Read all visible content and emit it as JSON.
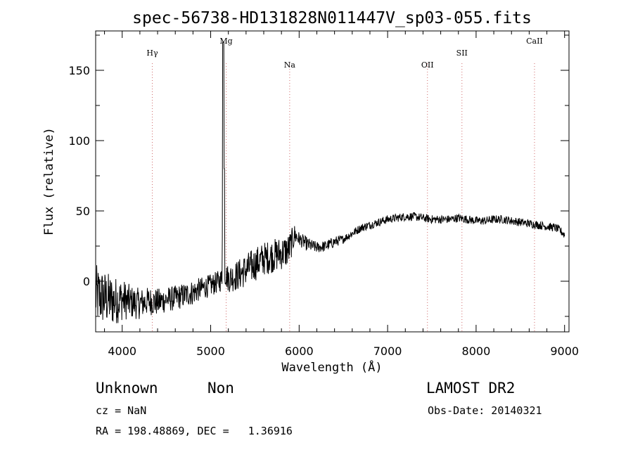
{
  "chart_data": {
    "type": "line",
    "title": "spec-56738-HD131828N011447V_sp03-055.fits",
    "xlabel": "Wavelength (Å)",
    "ylabel": "Flux (relative)",
    "xlim": [
      3700,
      9050
    ],
    "ylim": [
      -36,
      178
    ],
    "x_ticks": [
      4000,
      5000,
      6000,
      7000,
      8000,
      9000
    ],
    "y_ticks": [
      0,
      50,
      100,
      150
    ],
    "x_tick_labels": [
      "4000",
      "5000",
      "6000",
      "7000",
      "8000",
      "9000"
    ],
    "y_tick_labels": [
      "0",
      "50",
      "100",
      "150"
    ],
    "grid": false,
    "series": [
      {
        "color": "#000000",
        "x": [
          3700,
          3800,
          3900,
          4000,
          4100,
          4200,
          4300,
          4400,
          4500,
          4600,
          4700,
          4800,
          4900,
          5000,
          5100,
          5130,
          5140,
          5150,
          5160,
          5200,
          5300,
          5400,
          5500,
          5600,
          5700,
          5800,
          5880,
          5900,
          5950,
          6000,
          6100,
          6200,
          6300,
          6400,
          6500,
          6600,
          6700,
          6800,
          6900,
          7000,
          7100,
          7200,
          7300,
          7400,
          7500,
          7600,
          7700,
          7800,
          7900,
          8000,
          8100,
          8200,
          8300,
          8400,
          8500,
          8600,
          8700,
          8800,
          8900,
          8950,
          9000
        ],
        "y": [
          -10,
          -12,
          -14,
          -13,
          -15,
          -16,
          -14,
          -15,
          -13,
          -12,
          -10,
          -8,
          -5,
          -3,
          0,
          2,
          170,
          80,
          5,
          2,
          4,
          8,
          12,
          16,
          18,
          20,
          22,
          25,
          33,
          30,
          26,
          24,
          25,
          28,
          30,
          34,
          38,
          40,
          42,
          44,
          45,
          46,
          46,
          45,
          44,
          44,
          44,
          45,
          44,
          43,
          43,
          44,
          44,
          43,
          42,
          41,
          40,
          39,
          38,
          36,
          33
        ],
        "noise_amplitude": [
          22,
          20,
          18,
          15,
          12,
          11,
          10,
          10,
          9,
          9,
          9,
          9,
          8,
          8,
          8,
          8,
          0,
          0,
          8,
          10,
          11,
          12,
          12,
          12,
          12,
          12,
          12,
          11,
          8,
          5,
          5,
          4,
          4,
          4,
          3,
          3,
          3,
          3,
          3,
          3,
          3,
          3,
          3,
          3,
          3,
          3,
          3,
          3,
          3,
          3,
          3,
          3,
          3,
          3,
          3,
          3,
          3,
          3,
          3,
          3,
          3
        ]
      }
    ],
    "line_markers": [
      {
        "label": "Hγ",
        "x": 4340
      },
      {
        "label": "Mg",
        "x": 5175
      },
      {
        "label": "Na",
        "x": 5893
      },
      {
        "label": "OII",
        "x": 7450
      },
      {
        "label": "SII",
        "x": 7840
      },
      {
        "label": "CaII",
        "x": 8660
      }
    ],
    "marker_color": "#d06b6b"
  },
  "info": {
    "class_label": "Unknown",
    "subclass_label": "Non",
    "survey": "LAMOST DR2",
    "cz_text": "cz = NaN",
    "obs_date_text": "Obs-Date: 20140321",
    "coords_text": "RA = 198.48869, DEC =   1.36916"
  }
}
